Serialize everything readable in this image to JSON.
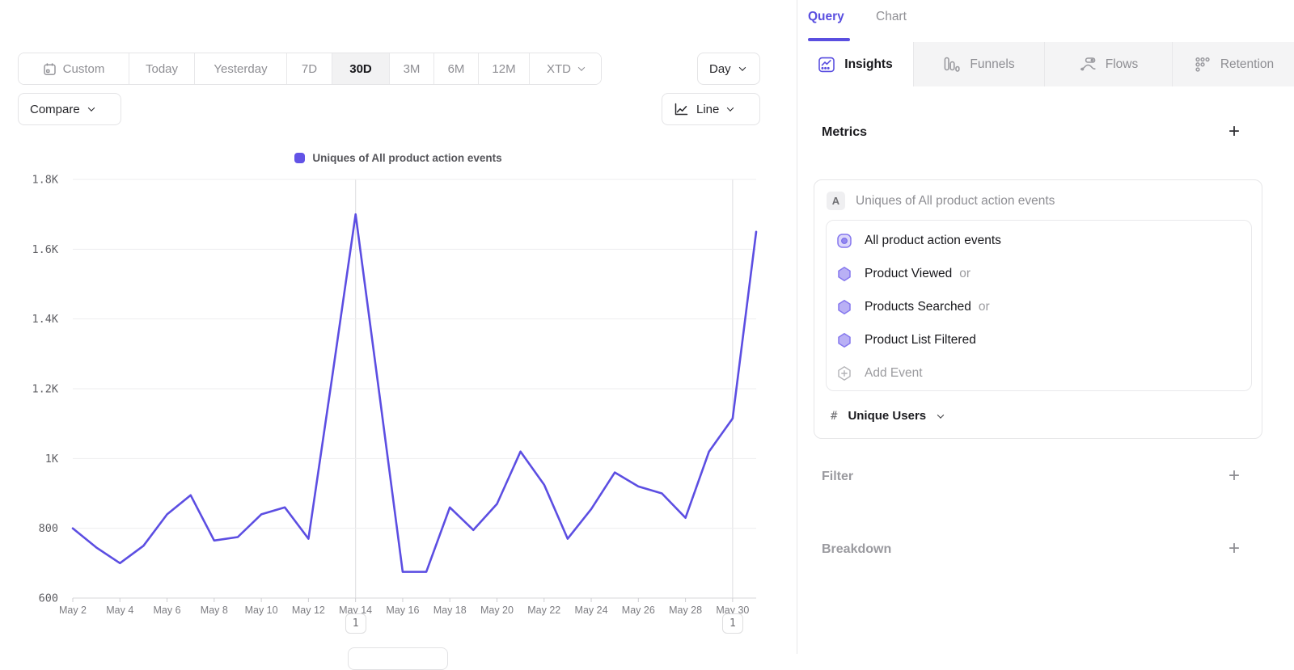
{
  "toolbar": {
    "ranges": [
      "Custom",
      "Today",
      "Yesterday",
      "7D",
      "30D",
      "3M",
      "6M",
      "12M",
      "XTD"
    ],
    "selected_range": "30D",
    "granularity": "Day",
    "compare_label": "Compare",
    "chart_type_label": "Line"
  },
  "chart_data": {
    "type": "line",
    "title": "Uniques of All product action events",
    "legend": [
      "Uniques of All product action events"
    ],
    "legend_position": "top",
    "grid": true,
    "ylim": [
      600,
      1800
    ],
    "yticks": [
      {
        "v": 600,
        "label": "600"
      },
      {
        "v": 800,
        "label": "800"
      },
      {
        "v": 1000,
        "label": "1K"
      },
      {
        "v": 1200,
        "label": "1.2K"
      },
      {
        "v": 1400,
        "label": "1.4K"
      },
      {
        "v": 1600,
        "label": "1.6K"
      },
      {
        "v": 1800,
        "label": "1.8K"
      }
    ],
    "x": [
      "May 2",
      "May 3",
      "May 4",
      "May 5",
      "May 6",
      "May 7",
      "May 8",
      "May 9",
      "May 10",
      "May 11",
      "May 12",
      "May 13",
      "May 14",
      "May 15",
      "May 16",
      "May 17",
      "May 18",
      "May 19",
      "May 20",
      "May 21",
      "May 22",
      "May 23",
      "May 24",
      "May 25",
      "May 26",
      "May 27",
      "May 28",
      "May 29",
      "May 30",
      "May 31"
    ],
    "xtick_labels": [
      "May 2",
      "May 4",
      "May 6",
      "May 8",
      "May 10",
      "May 12",
      "May 14",
      "May 16",
      "May 18",
      "May 20",
      "May 22",
      "May 24",
      "May 26",
      "May 28",
      "May 30"
    ],
    "series": [
      {
        "name": "Uniques of All product action events",
        "color": "#5c4ee2",
        "values": [
          800,
          745,
          700,
          750,
          840,
          895,
          765,
          775,
          840,
          860,
          770,
          1230,
          1700,
          1190,
          675,
          675,
          860,
          795,
          870,
          1020,
          925,
          770,
          855,
          960,
          920,
          900,
          830,
          1020,
          1115,
          1650
        ]
      }
    ],
    "annotations": [
      {
        "x": "May 14",
        "label": "1"
      },
      {
        "x": "May 30",
        "label": "1"
      }
    ]
  },
  "query_panel": {
    "tabs": [
      {
        "label": "Query"
      },
      {
        "label": "Chart"
      }
    ],
    "report_tabs": [
      {
        "label": "Insights"
      },
      {
        "label": "Funnels"
      },
      {
        "label": "Flows"
      },
      {
        "label": "Retention"
      }
    ],
    "metrics_section": {
      "title": "Metrics",
      "add_label": "+"
    },
    "metric_card": {
      "badge": "A",
      "title": "Uniques of All product action events",
      "events": [
        {
          "name": "All product action events",
          "suffix": ""
        },
        {
          "name": "Product Viewed",
          "suffix": "or"
        },
        {
          "name": "Products Searched",
          "suffix": "or"
        },
        {
          "name": "Product List Filtered",
          "suffix": ""
        }
      ],
      "add_event_label": "Add Event",
      "measurement": {
        "prefix": "#",
        "label": "Unique Users"
      }
    },
    "filter_section": {
      "title": "Filter",
      "add_label": "+"
    },
    "breakdown_section": {
      "title": "Breakdown",
      "add_label": "+"
    }
  },
  "colors": {
    "accent": "#5a4fe0",
    "line": "#5c4ee2",
    "hexagon_fill": "#b9b0f5",
    "hexagon_stroke": "#8678ee"
  }
}
